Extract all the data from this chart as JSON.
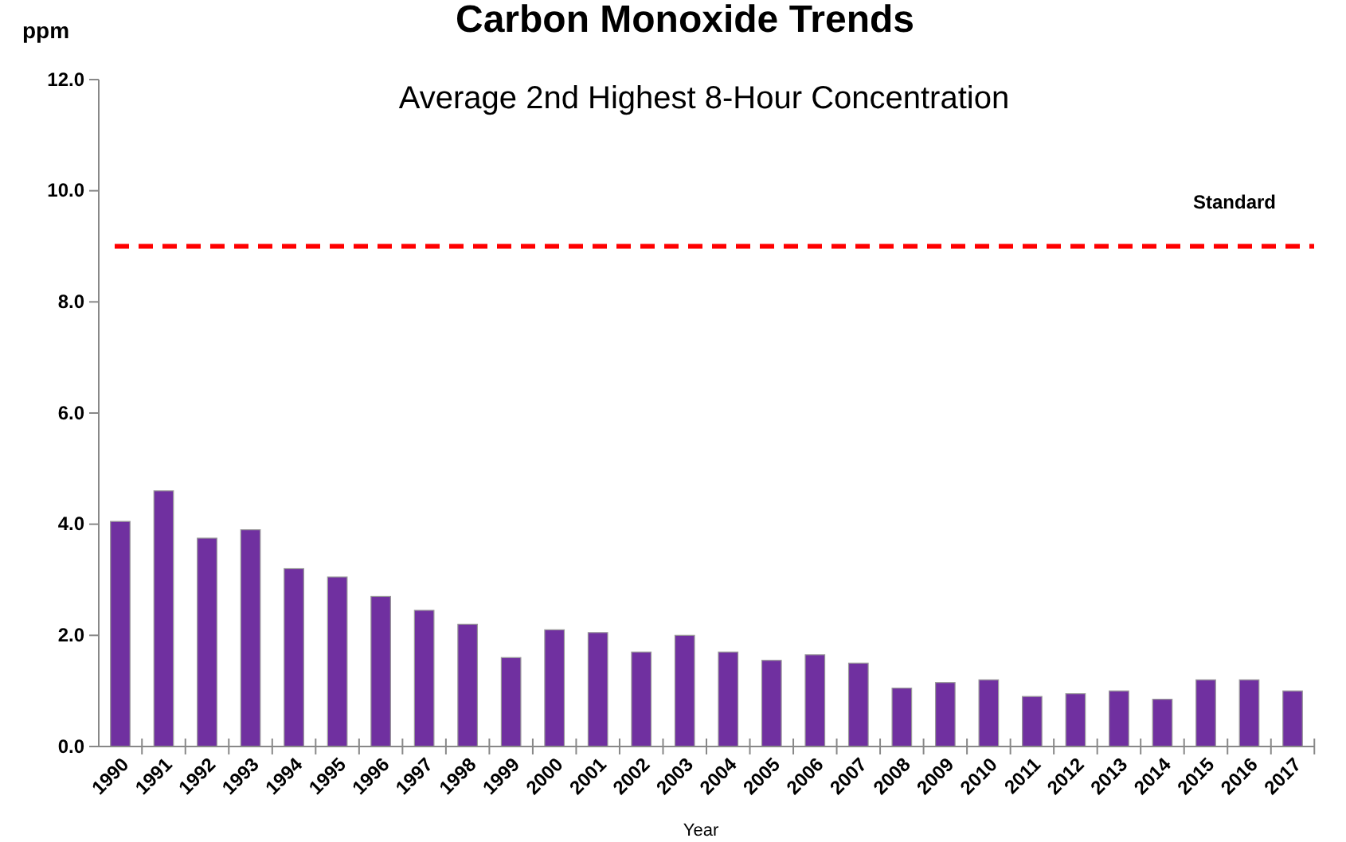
{
  "chart_data": {
    "type": "bar",
    "title": "Carbon Monoxide Trends",
    "subtitle": "Average 2nd Highest 8-Hour Concentration",
    "xlabel": "Year",
    "ylabel": "ppm",
    "categories": [
      "1990",
      "1991",
      "1992",
      "1993",
      "1994",
      "1995",
      "1996",
      "1997",
      "1998",
      "1999",
      "2000",
      "2001",
      "2002",
      "2003",
      "2004",
      "2005",
      "2006",
      "2007",
      "2008",
      "2009",
      "2010",
      "2011",
      "2012",
      "2013",
      "2014",
      "2015",
      "2016",
      "2017"
    ],
    "values": [
      4.05,
      4.6,
      3.75,
      3.9,
      3.2,
      3.05,
      2.7,
      2.45,
      2.2,
      1.6,
      2.1,
      2.05,
      1.7,
      2.0,
      1.7,
      1.55,
      1.65,
      1.5,
      1.05,
      1.15,
      1.2,
      0.9,
      0.95,
      1.0,
      0.85,
      1.2,
      1.2,
      1.0
    ],
    "color": "#7030a0",
    "ylim": [
      0,
      12
    ],
    "yticks": [
      {
        "value": 0,
        "label": "0.0"
      },
      {
        "value": 2,
        "label": "2.0"
      },
      {
        "value": 4,
        "label": "4.0"
      },
      {
        "value": 6,
        "label": "6.0"
      },
      {
        "value": 8,
        "label": "8.0"
      },
      {
        "value": 10,
        "label": "10.0"
      },
      {
        "value": 12,
        "label": "12.0"
      }
    ],
    "ref_lines": [
      {
        "axis": "y",
        "value": 9,
        "label": "Standard",
        "color": "#ff0000",
        "line_style": "dashed"
      }
    ],
    "grid": false
  }
}
